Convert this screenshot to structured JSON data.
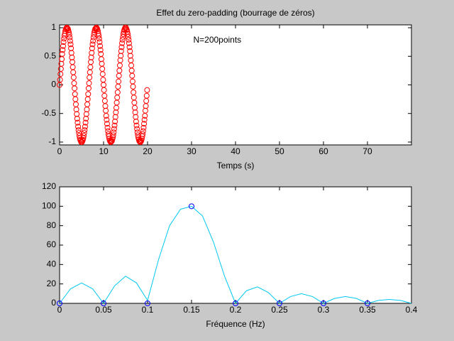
{
  "chart_data": [
    {
      "type": "scatter",
      "title": "Effet du zero-padding (bourrage de zéros)",
      "xlabel": "Temps (s)",
      "annotation": "N=200points",
      "color": "#ff0000",
      "xlim": [
        0,
        80
      ],
      "xticks": [
        0,
        10,
        20,
        30,
        40,
        50,
        60,
        70
      ],
      "ylim": [
        -1.05,
        1.05
      ],
      "yticks": [
        -1,
        -0.5,
        0,
        0.5,
        1
      ],
      "x": [
        0,
        0.1,
        0.2,
        0.3,
        0.4,
        0.5,
        0.6,
        0.7,
        0.8,
        0.9,
        1,
        1.1,
        1.2,
        1.3,
        1.4,
        1.5,
        1.6,
        1.7,
        1.8,
        1.9,
        2,
        2.1,
        2.2,
        2.3,
        2.4,
        2.5,
        2.6,
        2.7,
        2.8,
        2.9,
        3,
        3.1,
        3.2,
        3.3,
        3.4,
        3.5,
        3.6,
        3.7,
        3.8,
        3.9,
        4,
        4.1,
        4.2,
        4.3,
        4.4,
        4.5,
        4.6,
        4.7,
        4.8,
        4.9,
        5,
        5.1,
        5.2,
        5.3,
        5.4,
        5.5,
        5.6,
        5.7,
        5.8,
        5.9,
        6,
        6.1,
        6.2,
        6.3,
        6.4,
        6.5,
        6.6,
        6.7,
        6.8,
        6.9,
        7,
        7.1,
        7.2,
        7.3,
        7.4,
        7.5,
        7.6,
        7.7,
        7.8,
        7.9,
        8,
        8.1,
        8.2,
        8.3,
        8.4,
        8.5,
        8.6,
        8.7,
        8.8,
        8.9,
        9,
        9.1,
        9.2,
        9.3,
        9.4,
        9.5,
        9.6,
        9.7,
        9.8,
        9.9,
        10,
        10.1,
        10.2,
        10.3,
        10.4,
        10.5,
        10.6,
        10.7,
        10.8,
        10.9,
        11,
        11.1,
        11.2,
        11.3,
        11.4,
        11.5,
        11.6,
        11.7,
        11.8,
        11.9,
        12,
        12.1,
        12.2,
        12.3,
        12.4,
        12.5,
        12.6,
        12.7,
        12.8,
        12.9,
        13,
        13.1,
        13.2,
        13.3,
        13.4,
        13.5,
        13.6,
        13.7,
        13.8,
        13.9,
        14,
        14.1,
        14.2,
        14.3,
        14.4,
        14.5,
        14.6,
        14.7,
        14.8,
        14.9,
        15,
        15.1,
        15.2,
        15.3,
        15.4,
        15.5,
        15.6,
        15.7,
        15.8,
        15.9,
        16,
        16.1,
        16.2,
        16.3,
        16.4,
        16.5,
        16.6,
        16.7,
        16.8,
        16.9,
        17,
        17.1,
        17.2,
        17.3,
        17.4,
        17.5,
        17.6,
        17.7,
        17.8,
        17.9,
        18,
        18.1,
        18.2,
        18.3,
        18.4,
        18.5,
        18.6,
        18.7,
        18.8,
        18.9,
        19,
        19.1,
        19.2,
        19.3,
        19.4,
        19.5,
        19.6,
        19.7,
        19.8,
        19.9
      ],
      "values": [
        0,
        0.09,
        0.19,
        0.28,
        0.37,
        0.45,
        0.54,
        0.61,
        0.68,
        0.75,
        0.81,
        0.86,
        0.9,
        0.94,
        0.97,
        0.99,
        1,
        1,
        0.99,
        0.98,
        0.95,
        0.92,
        0.88,
        0.83,
        0.77,
        0.71,
        0.64,
        0.56,
        0.48,
        0.4,
        0.31,
        0.22,
        0.13,
        0.03,
        -0.06,
        -0.16,
        -0.25,
        -0.34,
        -0.43,
        -0.51,
        -0.59,
        -0.66,
        -0.73,
        -0.79,
        -0.84,
        -0.89,
        -0.93,
        -0.96,
        -0.98,
        -1,
        -1,
        -1,
        -0.98,
        -0.96,
        -0.93,
        -0.89,
        -0.84,
        -0.79,
        -0.73,
        -0.66,
        -0.59,
        -0.51,
        -0.43,
        -0.34,
        -0.25,
        -0.16,
        -0.06,
        0.03,
        0.13,
        0.22,
        0.31,
        0.4,
        0.48,
        0.56,
        0.64,
        0.71,
        0.77,
        0.83,
        0.88,
        0.92,
        0.95,
        0.98,
        0.99,
        1,
        1,
        0.99,
        0.97,
        0.94,
        0.9,
        0.86,
        0.81,
        0.75,
        0.68,
        0.61,
        0.54,
        0.45,
        0.37,
        0.28,
        0.19,
        0.09,
        0,
        -0.09,
        -0.19,
        -0.28,
        -0.37,
        -0.45,
        -0.54,
        -0.61,
        -0.68,
        -0.75,
        -0.81,
        -0.86,
        -0.9,
        -0.94,
        -0.97,
        -0.99,
        -1,
        -1,
        -0.99,
        -0.98,
        -0.95,
        -0.92,
        -0.88,
        -0.83,
        -0.77,
        -0.71,
        -0.64,
        -0.56,
        -0.48,
        -0.4,
        -0.31,
        -0.22,
        -0.13,
        -0.03,
        0.06,
        0.16,
        0.25,
        0.34,
        0.43,
        0.51,
        0.59,
        0.66,
        0.73,
        0.79,
        0.84,
        0.89,
        0.93,
        0.96,
        0.98,
        1,
        1,
        1,
        0.98,
        0.96,
        0.93,
        0.89,
        0.84,
        0.79,
        0.73,
        0.66,
        0.59,
        0.51,
        0.43,
        0.34,
        0.25,
        0.16,
        0.06,
        -0.03,
        -0.13,
        -0.22,
        -0.31,
        -0.4,
        -0.48,
        -0.56,
        -0.64,
        -0.71,
        -0.77,
        -0.83,
        -0.88,
        -0.92,
        -0.95,
        -0.98,
        -0.99,
        -1,
        -1,
        -0.99,
        -0.97,
        -0.94,
        -0.9,
        -0.86,
        -0.81,
        -0.75,
        -0.68,
        -0.61,
        -0.54,
        -0.45,
        -0.37,
        -0.28,
        -0.19,
        -0.09
      ]
    },
    {
      "type": "line",
      "xlabel": "Fréquence (Hz)",
      "xlim": [
        0,
        0.4
      ],
      "xticks": [
        0,
        0.05,
        0.1,
        0.15,
        0.2,
        0.25,
        0.3,
        0.35,
        0.4
      ],
      "ylim": [
        0,
        120
      ],
      "yticks": [
        0,
        20,
        40,
        60,
        80,
        100,
        120
      ],
      "series": [
        {
          "color": "#00c8f0",
          "x": [
            0,
            0.0125,
            0.025,
            0.0375,
            0.05,
            0.0625,
            0.075,
            0.0875,
            0.1,
            0.1125,
            0.125,
            0.1375,
            0.15,
            0.1625,
            0.175,
            0.1875,
            0.2,
            0.2125,
            0.225,
            0.2375,
            0.25,
            0.2625,
            0.275,
            0.2875,
            0.3,
            0.3125,
            0.325,
            0.3375,
            0.35,
            0.3625,
            0.375,
            0.3875,
            0.4
          ],
          "values": [
            0,
            15,
            21,
            15,
            0,
            18,
            28,
            21,
            3,
            45,
            80,
            97,
            100,
            90,
            63,
            28,
            0,
            13,
            17,
            11,
            0,
            7,
            10,
            7,
            0,
            5,
            7,
            5,
            0,
            3,
            4,
            3,
            0
          ]
        },
        {
          "color": "#0000ff",
          "marker": "circle",
          "x": [
            0,
            0.05,
            0.1,
            0.15,
            0.2,
            0.25,
            0.3,
            0.35
          ],
          "values": [
            0,
            0,
            0,
            100,
            0,
            0,
            0,
            0
          ]
        }
      ]
    }
  ]
}
